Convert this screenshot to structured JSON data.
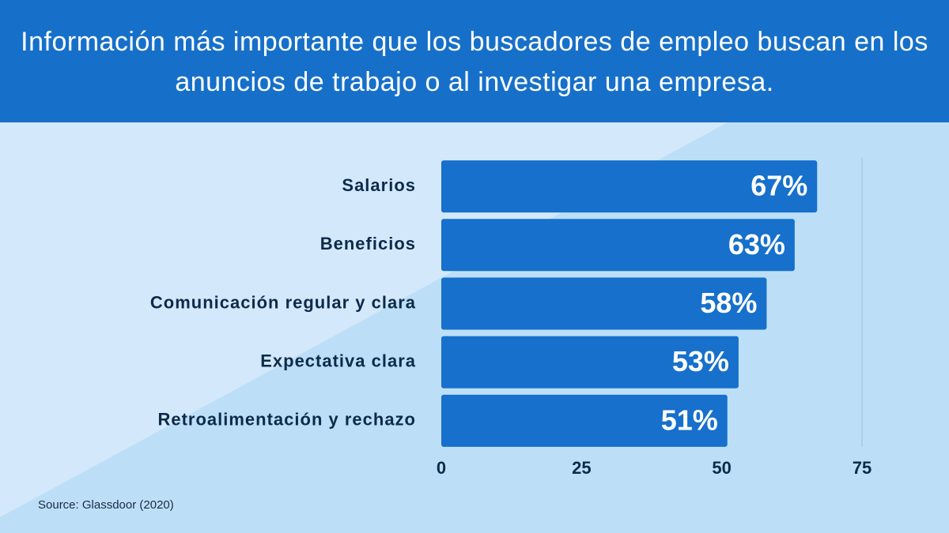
{
  "chart_data": {
    "type": "hbar",
    "title": "Información más importante que los buscadores de empleo buscan en los anuncios de trabajo o al investigar una empresa.",
    "categories": [
      "Salarios",
      "Beneficios",
      "Comunicación regular y clara",
      "Expectativa clara",
      "Retroalimentación y rechazo"
    ],
    "values": [
      67,
      63,
      58,
      53,
      51
    ],
    "value_labels": [
      "67%",
      "63%",
      "58%",
      "53%",
      "51%"
    ],
    "color": "#1670cc",
    "xlim": [
      0,
      75
    ],
    "xticks": [
      0,
      25,
      50,
      75
    ],
    "source": "Source: Glassdoor (2020)"
  }
}
